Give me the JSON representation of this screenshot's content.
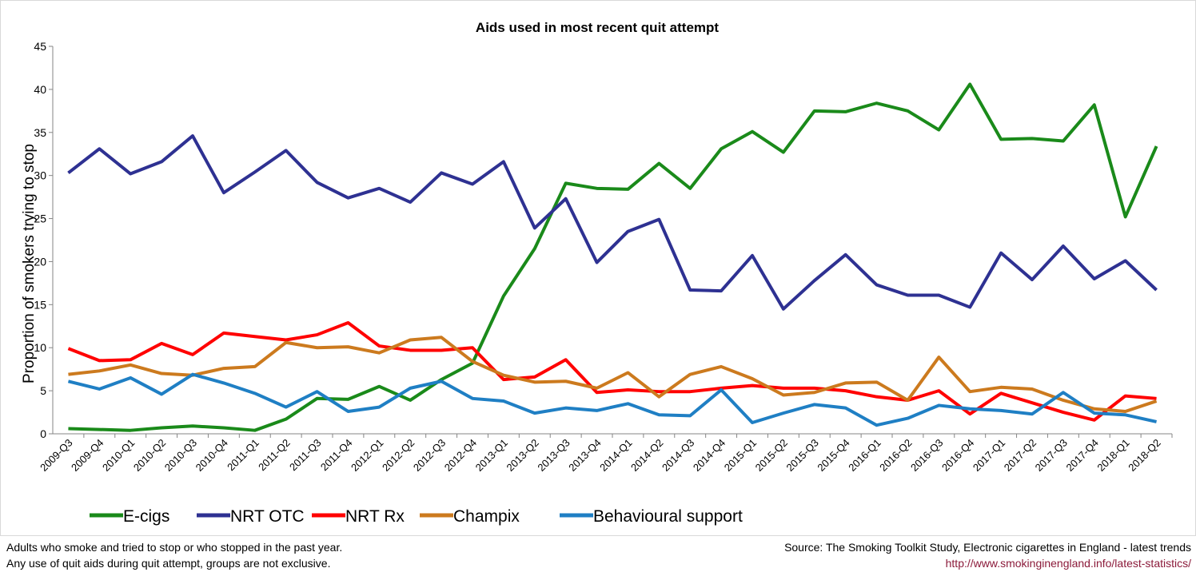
{
  "chart_data": {
    "type": "line",
    "title": "Aids used in most recent quit attempt",
    "y_label": "Proportion of smokers trying to stop",
    "categories": [
      "2009-Q3",
      "2009-Q4",
      "2010-Q1",
      "2010-Q2",
      "2010-Q3",
      "2010-Q4",
      "2011-Q1",
      "2011-Q2",
      "2011-Q3",
      "2011-Q4",
      "2012-Q1",
      "2012-Q2",
      "2012-Q3",
      "2012-Q4",
      "2013-Q1",
      "2013-Q2",
      "2013-Q3",
      "2013-Q4",
      "2014-Q1",
      "2014-Q2",
      "2014-Q3",
      "2014-Q4",
      "2015-Q1",
      "2015-Q2",
      "2015-Q3",
      "2015-Q4",
      "2016-Q1",
      "2016-Q2",
      "2016-Q3",
      "2016-Q4",
      "2017-Q1",
      "2017-Q2",
      "2017-Q3",
      "2017-Q4",
      "2018-Q1",
      "2018-Q2"
    ],
    "series": [
      {
        "name": "E-cigs",
        "color": "#1a8a1a",
        "values": [
          0.6,
          0.5,
          0.4,
          0.7,
          0.9,
          0.7,
          0.4,
          1.7,
          4.1,
          4.0,
          5.5,
          3.9,
          6.3,
          8.2,
          16.0,
          21.5,
          29.1,
          28.5,
          28.4,
          31.4,
          28.5,
          33.1,
          35.1,
          32.7,
          37.5,
          37.4,
          38.4,
          37.5,
          35.3,
          40.6,
          34.2,
          34.3,
          34.0,
          38.2,
          25.2,
          33.4
        ]
      },
      {
        "name": "NRT OTC",
        "color": "#2e3192",
        "values": [
          30.3,
          33.1,
          30.2,
          31.6,
          34.6,
          28.0,
          30.4,
          32.9,
          29.2,
          27.4,
          28.5,
          26.9,
          30.3,
          29.0,
          31.6,
          23.9,
          27.3,
          19.9,
          23.5,
          24.9,
          16.7,
          16.6,
          20.7,
          14.5,
          17.8,
          20.8,
          17.3,
          16.1,
          16.1,
          14.7,
          21.0,
          17.9,
          21.8,
          18.0,
          20.1,
          16.7
        ]
      },
      {
        "name": "NRT Rx",
        "color": "#ff0000",
        "values": [
          9.9,
          8.5,
          8.6,
          10.5,
          9.2,
          11.7,
          11.3,
          10.9,
          11.5,
          12.9,
          10.2,
          9.7,
          9.7,
          10.0,
          6.3,
          6.6,
          8.6,
          4.8,
          5.1,
          4.9,
          4.9,
          5.3,
          5.6,
          5.3,
          5.3,
          5.0,
          4.3,
          3.9,
          5.0,
          2.3,
          4.7,
          3.6,
          2.5,
          1.6,
          4.4,
          4.1
        ]
      },
      {
        "name": "Champix",
        "color": "#cc7a1e",
        "values": [
          6.9,
          7.3,
          8.0,
          7.0,
          6.8,
          7.6,
          7.8,
          10.6,
          10.0,
          10.1,
          9.4,
          10.9,
          11.2,
          8.4,
          6.8,
          6.0,
          6.1,
          5.3,
          7.1,
          4.3,
          6.9,
          7.8,
          6.4,
          4.5,
          4.8,
          5.9,
          6.0,
          3.9,
          8.9,
          4.9,
          5.4,
          5.2,
          3.9,
          2.9,
          2.6,
          3.8
        ]
      },
      {
        "name": "Behavioural support",
        "color": "#1f7fc4",
        "values": [
          6.1,
          5.2,
          6.5,
          4.6,
          6.9,
          5.9,
          4.7,
          3.1,
          4.9,
          2.6,
          3.1,
          5.3,
          6.1,
          4.1,
          3.8,
          2.4,
          3.0,
          2.7,
          3.5,
          2.2,
          2.1,
          5.1,
          1.3,
          2.4,
          3.4,
          3.0,
          1.0,
          1.8,
          3.3,
          2.9,
          2.7,
          2.3,
          4.8,
          2.4,
          2.2,
          1.4
        ]
      }
    ],
    "ylim": [
      0,
      45
    ],
    "yticks": [
      0,
      5,
      10,
      15,
      20,
      25,
      30,
      35,
      40,
      45
    ],
    "notes": [
      "Adults who smoke and tried to stop or who stopped in the past year.",
      "Any use of quit aids during quit attempt, groups are not exclusive."
    ],
    "source": "Source: The Smoking Toolkit Study, Electronic cigarettes in England - latest trends",
    "url": "http://www.smokinginengland.info/latest-statistics/"
  }
}
